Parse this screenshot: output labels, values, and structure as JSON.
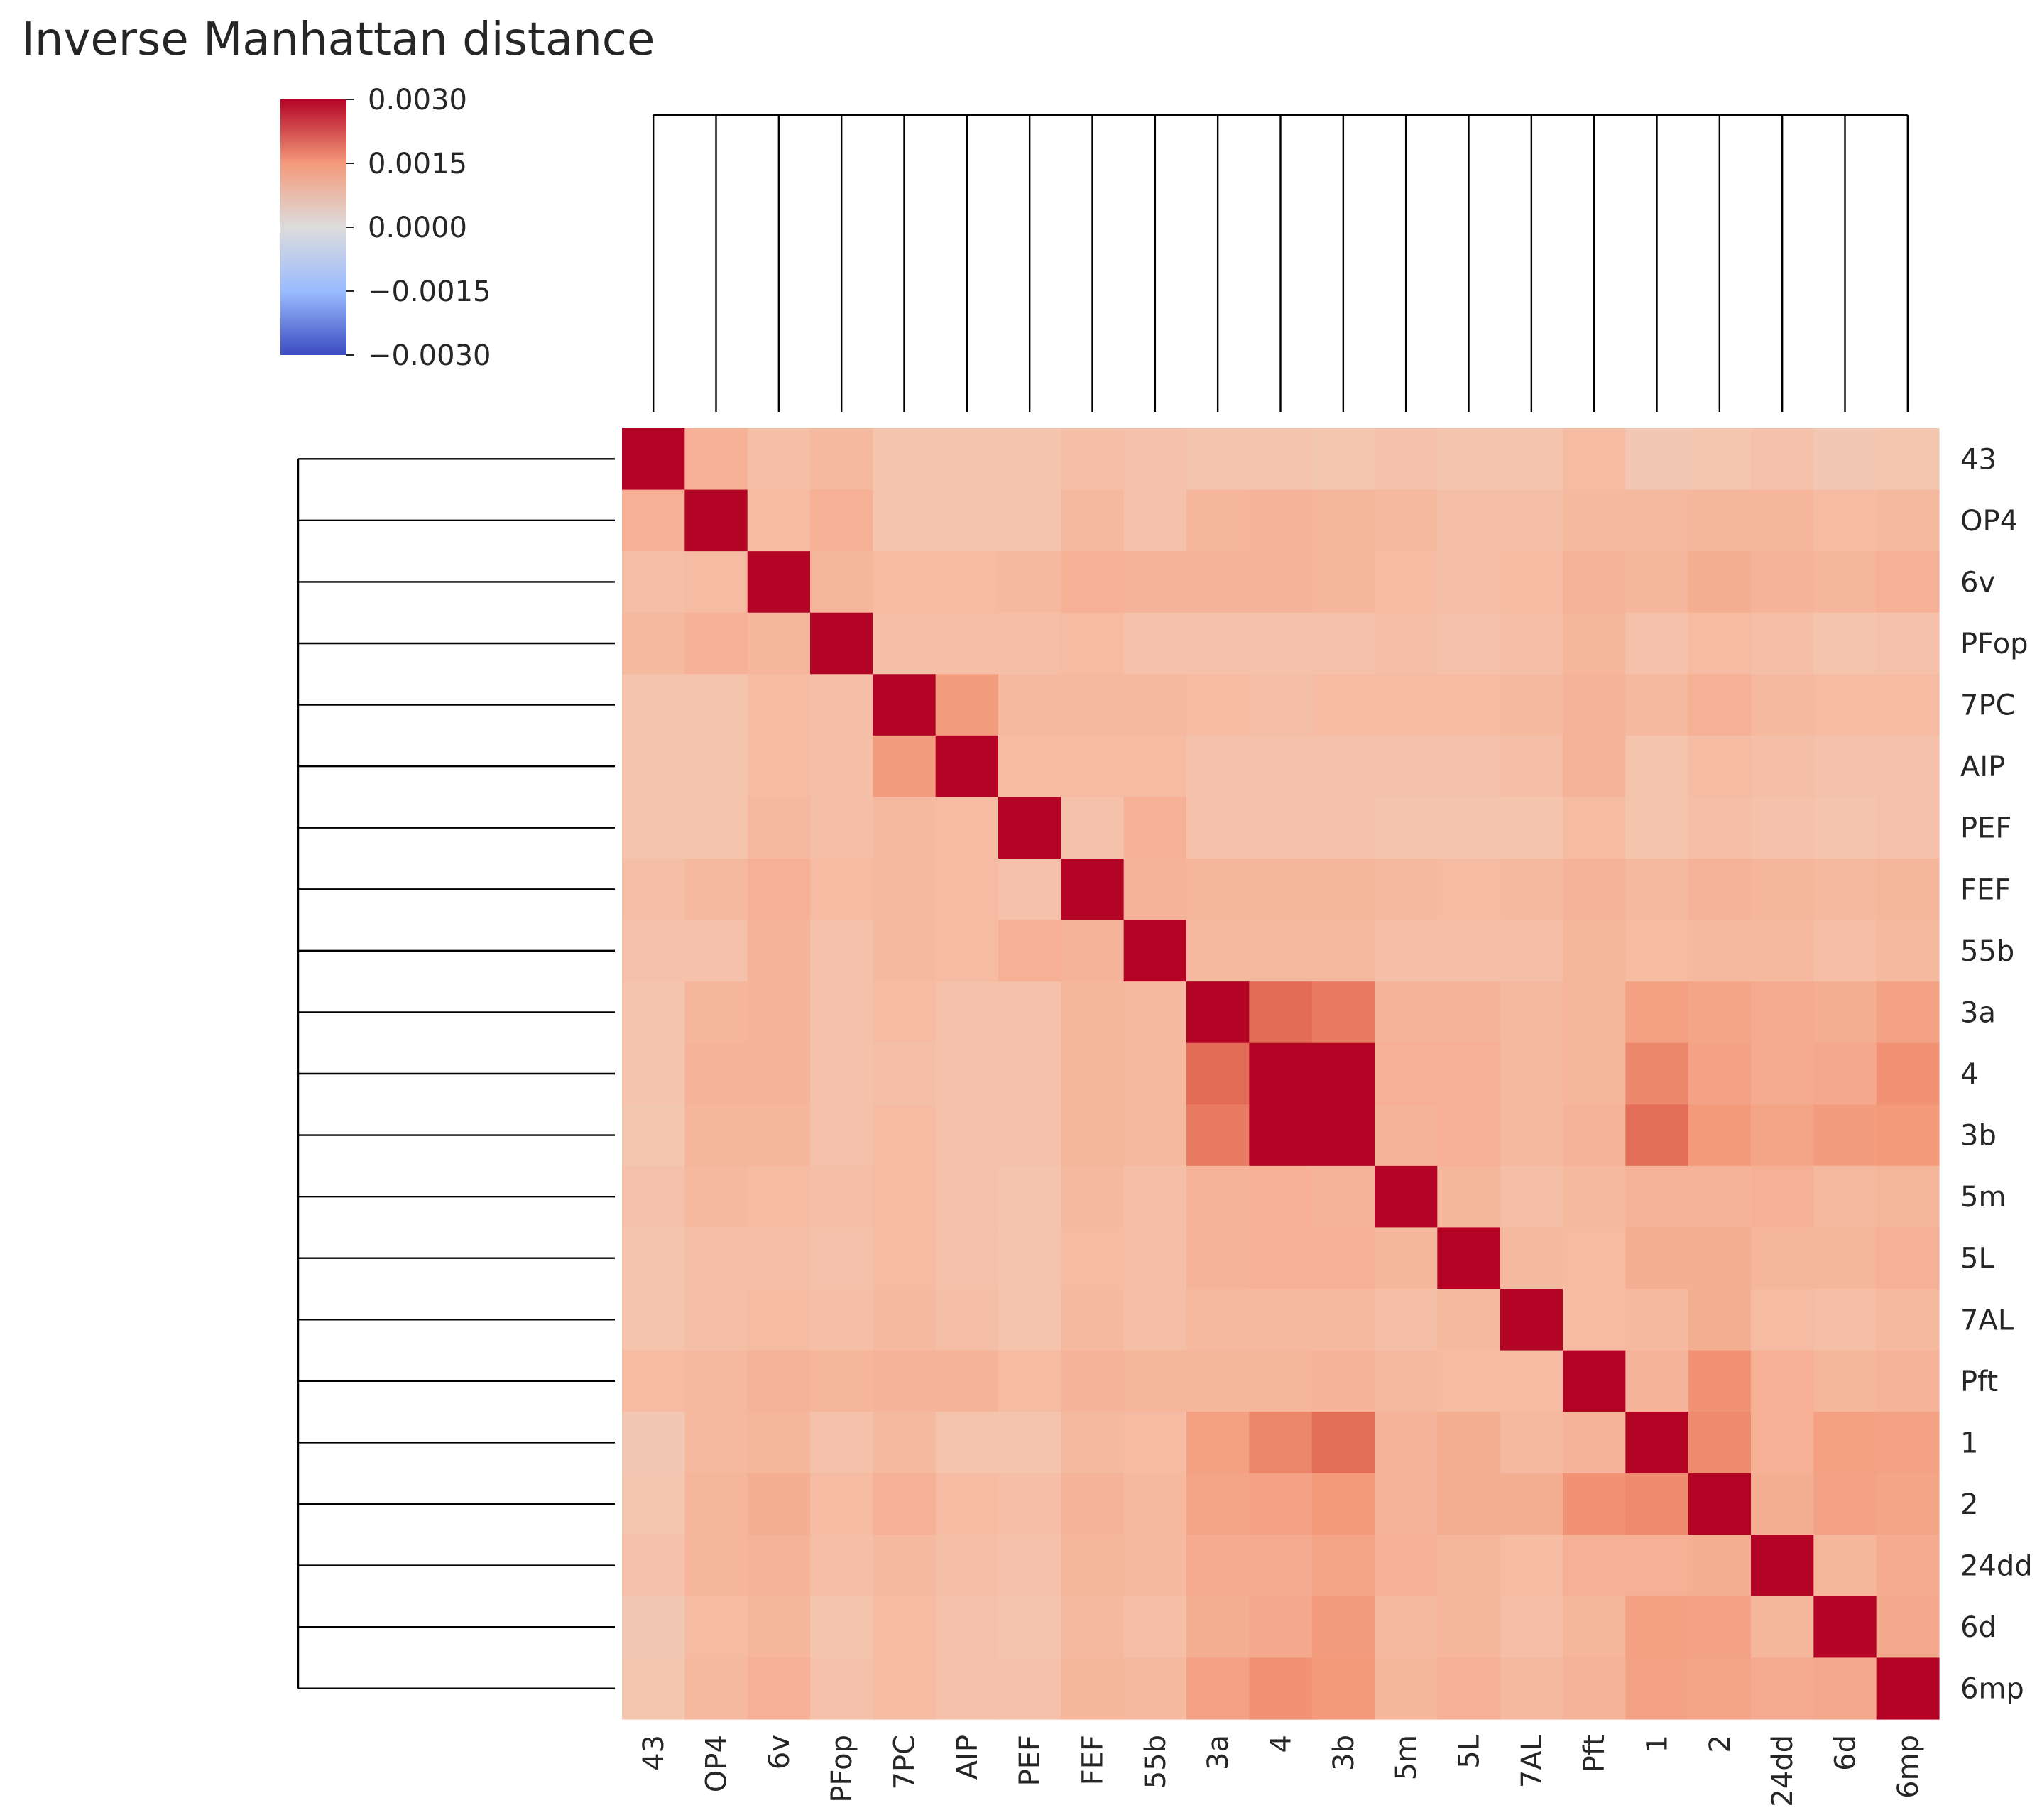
{
  "chart_data": {
    "type": "heatmap",
    "title": "Inverse Manhattan distance",
    "colormap": "coolwarm",
    "vmin": -0.003,
    "vmax": 0.003,
    "colorbar_ticks": [
      "0.0030",
      "0.0015",
      "0.0000",
      "−0.0015",
      "−0.0030"
    ],
    "colorbar_tick_values": [
      0.003,
      0.0015,
      0.0,
      -0.0015,
      -0.003
    ],
    "labels": [
      "43",
      "OP4",
      "6v",
      "PFop",
      "7PC",
      "AIP",
      "PEF",
      "FEF",
      "55b",
      "3a",
      "4",
      "3b",
      "5m",
      "5L",
      "7AL",
      "Pft",
      "1",
      "2",
      "24dd",
      "6d",
      "6mp"
    ],
    "dendrogram": {
      "top": true,
      "left": true,
      "style": "black line tree"
    },
    "values": [
      [
        0.003,
        0.0011,
        0.00085,
        0.00095,
        0.00075,
        0.00075,
        0.00075,
        0.00085,
        0.0008,
        0.00075,
        0.00075,
        0.0007,
        0.0008,
        0.00075,
        0.00075,
        0.0009,
        0.00065,
        0.0007,
        0.0008,
        0.00065,
        0.0007
      ],
      [
        0.0011,
        0.003,
        0.0009,
        0.0011,
        0.00075,
        0.00075,
        0.00075,
        0.00095,
        0.0008,
        0.001,
        0.00105,
        0.001,
        0.00095,
        0.00085,
        0.00085,
        0.00095,
        0.00095,
        0.001,
        0.001,
        0.0009,
        0.00095
      ],
      [
        0.00085,
        0.0009,
        0.003,
        0.001,
        0.0009,
        0.0009,
        0.00095,
        0.0011,
        0.00105,
        0.00105,
        0.00105,
        0.001,
        0.0009,
        0.00085,
        0.0009,
        0.00105,
        0.001,
        0.00115,
        0.00105,
        0.001,
        0.0011
      ],
      [
        0.00095,
        0.0011,
        0.001,
        0.003,
        0.00085,
        0.00085,
        0.00085,
        0.0009,
        0.0008,
        0.0008,
        0.0008,
        0.0008,
        0.00085,
        0.0008,
        0.00085,
        0.001,
        0.0008,
        0.0009,
        0.00085,
        0.00075,
        0.0008
      ],
      [
        0.00075,
        0.00075,
        0.0009,
        0.00085,
        0.003,
        0.00145,
        0.00095,
        0.00095,
        0.00095,
        0.0009,
        0.00085,
        0.0009,
        0.0009,
        0.0009,
        0.00095,
        0.00105,
        0.00095,
        0.0011,
        0.00095,
        0.0009,
        0.0009
      ],
      [
        0.00075,
        0.00075,
        0.0009,
        0.00085,
        0.00145,
        0.003,
        0.0009,
        0.0009,
        0.0009,
        0.0008,
        0.0008,
        0.0008,
        0.0008,
        0.0008,
        0.00085,
        0.00105,
        0.00075,
        0.0009,
        0.00085,
        0.0008,
        0.0008
      ],
      [
        0.00075,
        0.00075,
        0.00095,
        0.00085,
        0.00095,
        0.0009,
        0.003,
        0.0008,
        0.0011,
        0.0008,
        0.0008,
        0.0008,
        0.00075,
        0.00075,
        0.00075,
        0.0009,
        0.00075,
        0.00085,
        0.0008,
        0.00075,
        0.0008
      ],
      [
        0.00085,
        0.00095,
        0.0011,
        0.0009,
        0.00095,
        0.0009,
        0.0008,
        0.003,
        0.00105,
        0.001,
        0.001,
        0.001,
        0.00095,
        0.0009,
        0.00095,
        0.00105,
        0.00095,
        0.00105,
        0.001,
        0.00095,
        0.001
      ],
      [
        0.0008,
        0.0008,
        0.00105,
        0.0008,
        0.00095,
        0.0009,
        0.0011,
        0.00105,
        0.003,
        0.00095,
        0.00095,
        0.00095,
        0.00085,
        0.00085,
        0.00085,
        0.001,
        0.0009,
        0.00095,
        0.00095,
        0.00085,
        0.00095
      ],
      [
        0.00075,
        0.001,
        0.00105,
        0.0008,
        0.0009,
        0.0008,
        0.0008,
        0.001,
        0.00095,
        0.003,
        0.0021,
        0.0019,
        0.00105,
        0.00105,
        0.00095,
        0.001,
        0.0014,
        0.0013,
        0.0012,
        0.00115,
        0.00135
      ],
      [
        0.00075,
        0.00105,
        0.00105,
        0.0008,
        0.00085,
        0.0008,
        0.0008,
        0.001,
        0.00095,
        0.0021,
        0.003,
        0.003,
        0.0011,
        0.0011,
        0.00095,
        0.001,
        0.00175,
        0.00135,
        0.0012,
        0.00125,
        0.0016
      ],
      [
        0.0007,
        0.001,
        0.001,
        0.0008,
        0.0009,
        0.0008,
        0.0008,
        0.001,
        0.00095,
        0.0019,
        0.003,
        0.003,
        0.00105,
        0.0011,
        0.00095,
        0.00105,
        0.00205,
        0.0015,
        0.0013,
        0.00145,
        0.0015
      ],
      [
        0.0008,
        0.00095,
        0.0009,
        0.00085,
        0.0009,
        0.0008,
        0.00075,
        0.00095,
        0.00085,
        0.00105,
        0.0011,
        0.00105,
        0.003,
        0.001,
        0.00085,
        0.00095,
        0.00105,
        0.00105,
        0.0011,
        0.00095,
        0.001
      ],
      [
        0.00075,
        0.00085,
        0.00085,
        0.0008,
        0.0009,
        0.0008,
        0.00075,
        0.0009,
        0.00085,
        0.00105,
        0.0011,
        0.0011,
        0.001,
        0.003,
        0.00095,
        0.0009,
        0.00115,
        0.00115,
        0.001,
        0.001,
        0.0011
      ],
      [
        0.00075,
        0.00085,
        0.0009,
        0.00085,
        0.00095,
        0.00085,
        0.00075,
        0.00095,
        0.00085,
        0.00095,
        0.00095,
        0.00095,
        0.00085,
        0.00095,
        0.003,
        0.0009,
        0.00095,
        0.00115,
        0.0009,
        0.00085,
        0.00095
      ],
      [
        0.0009,
        0.00095,
        0.00105,
        0.001,
        0.00105,
        0.00105,
        0.0009,
        0.00105,
        0.001,
        0.001,
        0.001,
        0.00105,
        0.00095,
        0.0009,
        0.0009,
        0.003,
        0.00105,
        0.0016,
        0.0011,
        0.001,
        0.00105
      ],
      [
        0.00065,
        0.00095,
        0.001,
        0.0008,
        0.00095,
        0.00075,
        0.00075,
        0.00095,
        0.0009,
        0.0014,
        0.00175,
        0.00205,
        0.00105,
        0.00115,
        0.00095,
        0.00105,
        0.003,
        0.0017,
        0.0011,
        0.0014,
        0.00135
      ],
      [
        0.0007,
        0.001,
        0.00115,
        0.0009,
        0.0011,
        0.0009,
        0.00085,
        0.00105,
        0.00095,
        0.0013,
        0.00135,
        0.0015,
        0.00105,
        0.00115,
        0.00115,
        0.0016,
        0.0017,
        0.003,
        0.00115,
        0.00135,
        0.0013
      ],
      [
        0.0008,
        0.001,
        0.00105,
        0.00085,
        0.00095,
        0.00085,
        0.0008,
        0.001,
        0.00095,
        0.0012,
        0.0012,
        0.0013,
        0.0011,
        0.001,
        0.0009,
        0.0011,
        0.0011,
        0.00115,
        0.003,
        0.001,
        0.0012
      ],
      [
        0.00065,
        0.0009,
        0.001,
        0.00075,
        0.0009,
        0.0008,
        0.00075,
        0.00095,
        0.00085,
        0.00115,
        0.00125,
        0.00145,
        0.00095,
        0.001,
        0.00085,
        0.001,
        0.0014,
        0.00135,
        0.001,
        0.003,
        0.00125
      ],
      [
        0.0007,
        0.00095,
        0.0011,
        0.0008,
        0.0009,
        0.0008,
        0.0008,
        0.001,
        0.00095,
        0.00135,
        0.0016,
        0.0015,
        0.001,
        0.0011,
        0.00095,
        0.00105,
        0.00135,
        0.0013,
        0.0012,
        0.00125,
        0.003
      ]
    ]
  }
}
